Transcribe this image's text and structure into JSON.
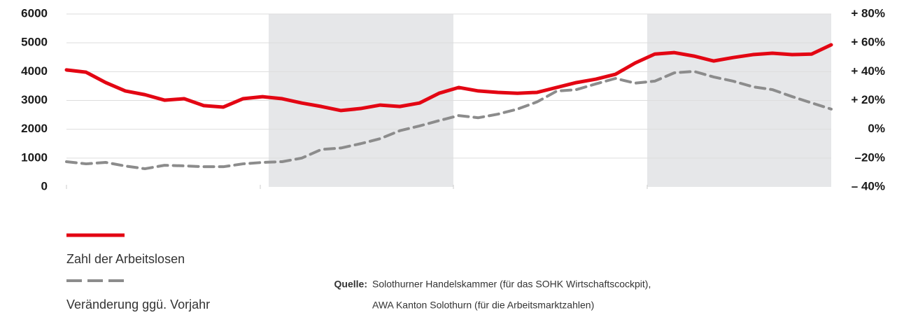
{
  "chart_data": {
    "type": "line",
    "categories": [
      null,
      null,
      null,
      null,
      null,
      null,
      null,
      null,
      null,
      null,
      null,
      null,
      null,
      null,
      null,
      null,
      null,
      null,
      null,
      null,
      null,
      null,
      null,
      null,
      null,
      null,
      null,
      null,
      null,
      null,
      null,
      null,
      null,
      null,
      null,
      null,
      null,
      null,
      null,
      null
    ],
    "series": [
      {
        "name": "Zahl der Arbeitslosen",
        "color": "#e30613",
        "dash": false,
        "values": [
          4060,
          3980,
          3620,
          3330,
          3200,
          3010,
          3060,
          2820,
          2770,
          3060,
          3130,
          3060,
          2910,
          2790,
          2650,
          2720,
          2840,
          2790,
          2910,
          3250,
          3450,
          3330,
          3280,
          3250,
          3280,
          3450,
          3620,
          3740,
          3910,
          4300,
          4610,
          4660,
          4540,
          4370,
          4490,
          4590,
          4640,
          4590,
          4610,
          4930
        ]
      },
      {
        "name": "Veränderung ggü. Vorjahr",
        "color": "#8c8c8c",
        "dash": true,
        "axis": "y2",
        "values": [
          -22.5,
          -24,
          -23,
          -25.5,
          -27.4,
          -25,
          -25.4,
          -26,
          -26,
          -24,
          -23,
          -22.5,
          -20,
          -14,
          -13,
          -10,
          -6.5,
          -1,
          2.3,
          6,
          9.5,
          8,
          10.5,
          14,
          19,
          26.5,
          27.5,
          31.5,
          35.3,
          32,
          33.4,
          39.2,
          40.2,
          36.3,
          33.4,
          29.5,
          27.5,
          22.7,
          18.3,
          14
        ]
      }
    ],
    "ylim": [
      0,
      6000
    ],
    "yticks": [
      0,
      1000,
      2000,
      3000,
      4000,
      5000,
      6000
    ],
    "y2lim": [
      -40,
      80
    ],
    "y2ticks": [
      {
        "value": -40,
        "label": "– 40%"
      },
      {
        "value": -20,
        "label": "–20%"
      },
      {
        "value": 0,
        "label": "0%"
      },
      {
        "value": 20,
        "label": "+ 20%"
      },
      {
        "value": 40,
        "label": "+ 40%"
      },
      {
        "value": 60,
        "label": "+ 60%"
      },
      {
        "value": 80,
        "label": "+ 80%"
      }
    ],
    "grid": true,
    "source_label": "Quelle:",
    "source": [
      "Solothurner Handelskammer (für das SOHK Wirtschaftscockpit),",
      "AWA Kanton Solothurn (für die Arbeitsmarktzahlen)"
    ]
  }
}
